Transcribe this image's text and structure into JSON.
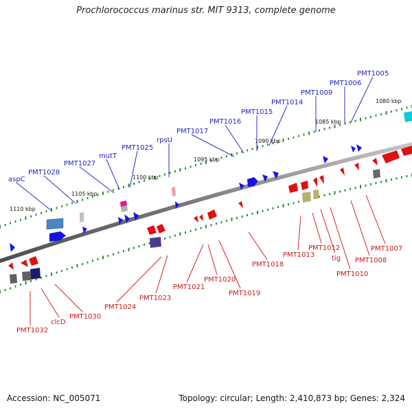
{
  "title": "Prochlorococcus marinus str. MIT 9313, complete genome",
  "footer": {
    "accession": "Accession: NC_005071",
    "topology": "Topology: circular; Length: 2,410,873 bp; Genes: 2,324"
  },
  "scale_labels": [
    "1080 kbp",
    "1085 kbp",
    "1090 kbp",
    "1095 kbp",
    "1100 kbp",
    "1105 kbp",
    "1110 kbp"
  ],
  "top_labels": [
    "PMT1005",
    "PMT1006",
    "PMT1009",
    "PMT1014",
    "PMT1015",
    "PMT1016",
    "PMT1017",
    "rpsU",
    "PMT1025",
    "mutT",
    "PMT1027",
    "PMT1028",
    "aspC"
  ],
  "bottom_labels": [
    "PMT1007",
    "PMT1008",
    "PMT1010",
    "tig",
    "PMT1012",
    "PMT1013",
    "PMT1018",
    "PMT1019",
    "PMT1020",
    "PMT1021",
    "PMT1023",
    "PMT1024",
    "PMT1030",
    "clcD",
    "PMT1032"
  ],
  "colors": {
    "axis": "#8c8c8c",
    "forward_gene": "#1010ee",
    "reverse_gene": "#ee1010",
    "tick": "#2f8a2f",
    "top_label": "#2020c8",
    "bottom_label": "#c81818"
  }
}
